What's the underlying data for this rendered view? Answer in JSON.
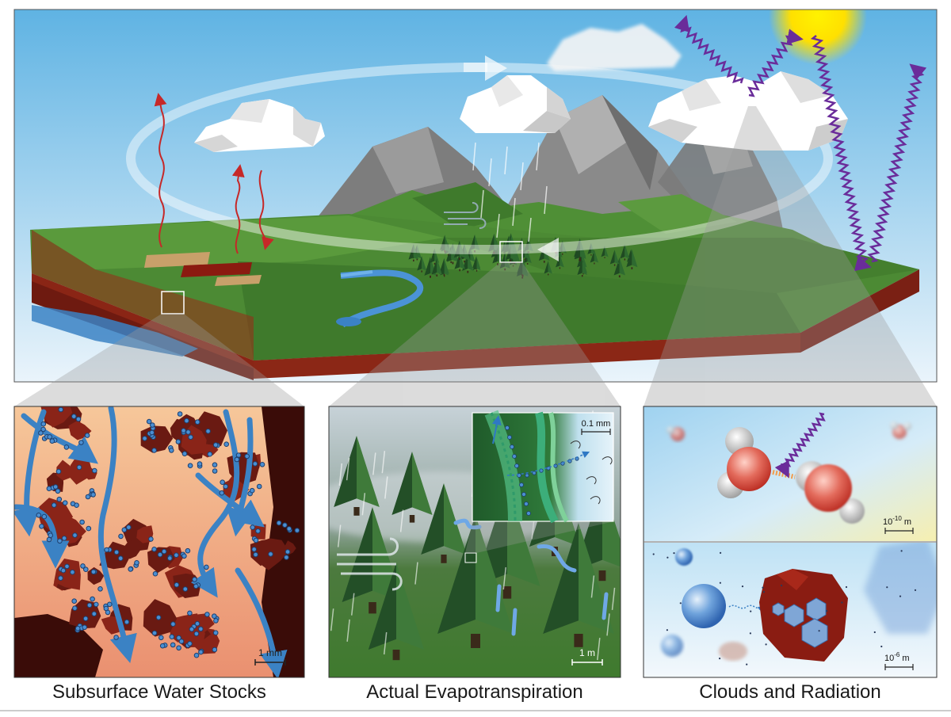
{
  "panels": [
    {
      "id": "subsurface",
      "title": "Subsurface Water Stocks",
      "scale": "1 mm"
    },
    {
      "id": "evapo",
      "title": "Actual Evapotranspiration",
      "scale": "1 m",
      "inset_scale": "0.1 mm"
    },
    {
      "id": "clouds",
      "title": "Clouds and Radiation",
      "scale_top_base": "10",
      "scale_top_exp": "-10",
      "scale_top_unit": " m",
      "scale_bottom_base": "10",
      "scale_bottom_exp": "-6",
      "scale_bottom_unit": " m"
    }
  ],
  "colors": {
    "sky_top": "#5fb3e3",
    "sky_bottom": "#eaf4fb",
    "grass": "#4c8a34",
    "soil": "#7a1a12",
    "water": "#3b82c4",
    "radiation": "#6a2c9a",
    "flux": "#c62828",
    "sun": "#ffe000",
    "soil_bg": "#f0a070",
    "rock": "#5a1410"
  },
  "icons": [
    "sun-icon",
    "cloud-icon",
    "wind-icon",
    "tree-icon",
    "water-molecule-icon",
    "ice-crystal-icon"
  ]
}
